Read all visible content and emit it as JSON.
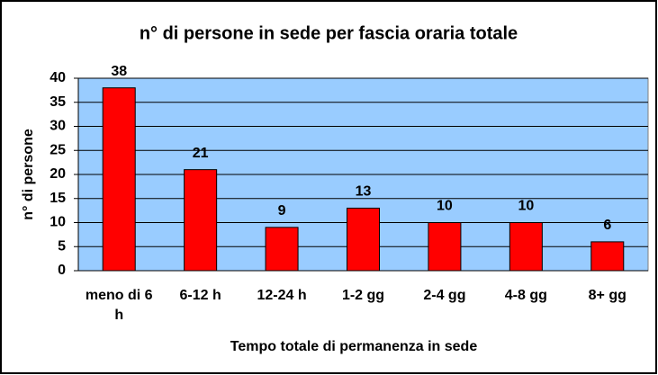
{
  "chart_data": {
    "type": "bar",
    "title": "n° di persone in sede per fascia oraria totale",
    "x_label": "Tempo totale di permanenza in sede",
    "y_label": "n° di persone",
    "categories": [
      "meno di 6 h",
      "6-12 h",
      "12-24 h",
      "1-2 gg",
      "2-4 gg",
      "4-8 gg",
      "8+ gg"
    ],
    "values": [
      38,
      21,
      9,
      13,
      10,
      10,
      6
    ],
    "color": "#ff0000",
    "background": "#99ccff",
    "ylim": [
      0,
      40
    ],
    "yticks": [
      0,
      5,
      10,
      15,
      20,
      25,
      30,
      35,
      40
    ],
    "grid": true
  }
}
